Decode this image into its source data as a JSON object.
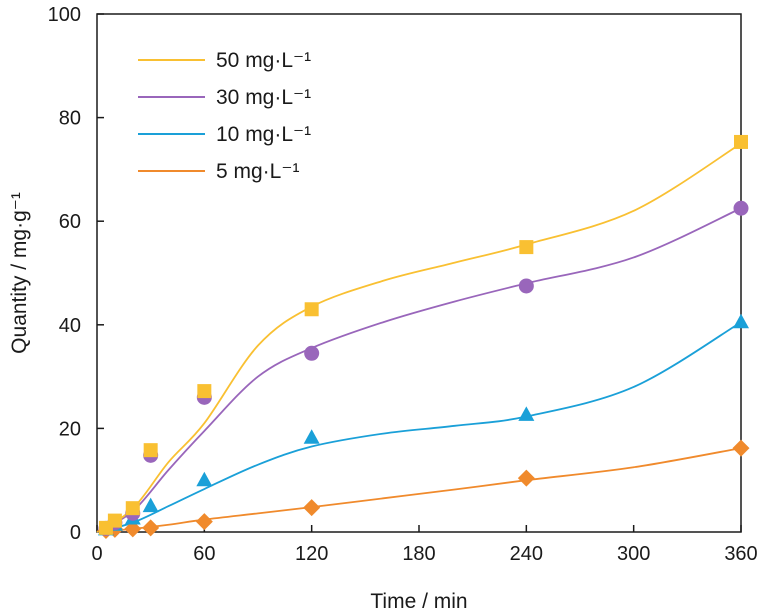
{
  "chart_data": {
    "type": "scatter",
    "xlabel": "Time / min",
    "ylabel": "Quantity / mg·g⁻¹",
    "xlim": [
      0,
      360
    ],
    "ylim": [
      0,
      100
    ],
    "xticks": [
      0,
      60,
      120,
      180,
      240,
      300,
      360
    ],
    "yticks": [
      0,
      20,
      40,
      60,
      80,
      100
    ],
    "grid": false,
    "legend_position": "top-left",
    "series": [
      {
        "name": "50 mg·L⁻¹",
        "color": "#F9C032",
        "marker": "square",
        "x": [
          5,
          10,
          20,
          30,
          60,
          120,
          240,
          360
        ],
        "y": [
          0.8,
          2.2,
          4.6,
          15.8,
          27.2,
          43.0,
          55.0,
          75.3
        ],
        "fit_y": [
          0.0,
          4.5,
          13.5,
          21.0,
          36.0,
          43.5,
          48.5,
          52.0,
          55.5,
          62.0,
          75.0
        ]
      },
      {
        "name": "30 mg·L⁻¹",
        "color": "#9966BB",
        "marker": "circle",
        "x": [
          5,
          10,
          20,
          30,
          60,
          120,
          240,
          360
        ],
        "y": [
          0.7,
          1.8,
          3.6,
          14.8,
          26.0,
          34.5,
          47.5,
          62.5
        ],
        "fit_y": [
          0.0,
          4.0,
          12.0,
          19.5,
          30.0,
          35.5,
          40.5,
          44.5,
          48.0,
          53.0,
          62.5
        ]
      },
      {
        "name": "10 mg·L⁻¹",
        "color": "#1AA0D8",
        "marker": "triangle",
        "x": [
          5,
          10,
          20,
          30,
          60,
          120,
          240,
          360
        ],
        "y": [
          0.5,
          1.4,
          2.6,
          5.0,
          10.0,
          18.2,
          22.6,
          40.5
        ],
        "fit_y": [
          0.0,
          1.8,
          5.0,
          8.3,
          13.0,
          16.5,
          19.0,
          20.5,
          22.3,
          28.0,
          40.5
        ]
      },
      {
        "name": "5 mg·L⁻¹",
        "color": "#F08A2C",
        "marker": "diamond",
        "x": [
          5,
          10,
          20,
          30,
          60,
          120,
          240,
          360
        ],
        "y": [
          0.3,
          0.5,
          0.6,
          0.8,
          2.0,
          4.7,
          10.4,
          16.2
        ],
        "fit_y": [
          0.0,
          0.6,
          1.4,
          2.4,
          3.6,
          4.8,
          6.5,
          8.2,
          10.0,
          12.5,
          16.2
        ]
      }
    ],
    "fit_x": [
      0,
      20,
      40,
      60,
      90,
      120,
      160,
      200,
      240,
      300,
      360
    ]
  }
}
